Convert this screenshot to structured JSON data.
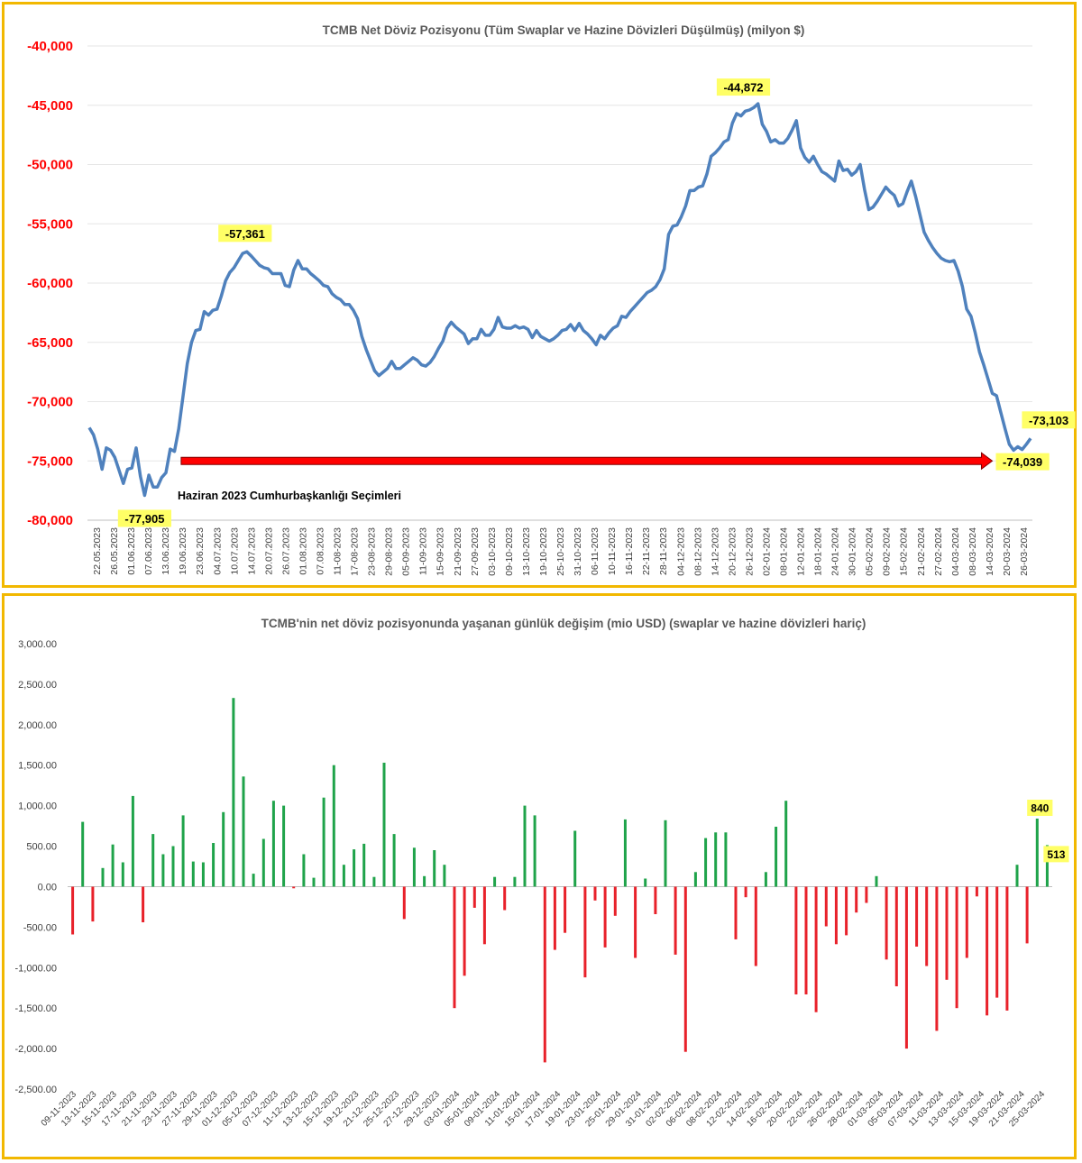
{
  "chart_data": [
    {
      "type": "line",
      "title": "TCMB Net Döviz Pozisyonu (Tüm Swaplar ve Hazine Dövizleri Düşülmüş) (milyon $)",
      "ylim": [
        -80000,
        -40000
      ],
      "yticks": [
        -40000,
        -45000,
        -50000,
        -55000,
        -60000,
        -65000,
        -70000,
        -75000,
        -80000
      ],
      "ytick_labels": [
        "-40,000",
        "-45,000",
        "-50,000",
        "-55,000",
        "-60,000",
        "-65,000",
        "-70,000",
        "-75,000",
        "-80,000"
      ],
      "xtick_labels": [
        "22.05.2023",
        "26.05.2023",
        "01.06.2023",
        "07.06.2023",
        "13.06.2023",
        "19.06.2023",
        "23.06.2023",
        "04.07.2023",
        "10.07.2023",
        "14.07.2023",
        "20.07.2023",
        "26.07.2023",
        "01.08.2023",
        "07.08.2023",
        "11-08-2023",
        "17-08-2023",
        "23-08-2023",
        "29-08-2023",
        "05-09-2023",
        "11-09-2023",
        "15-09-2023",
        "21-09-2023",
        "27-09-2023",
        "03-10-2023",
        "09-10-2023",
        "13-10-2023",
        "19-10-2023",
        "25-10-2023",
        "31-10-2023",
        "06-11-2023",
        "10-11-2023",
        "16-11-2023",
        "22-11-2023",
        "28-11-2023",
        "04-12-2023",
        "08-12-2023",
        "14-12-2023",
        "20-12-2023",
        "26-12-2023",
        "02-01-2024",
        "08-01-2024",
        "12-01-2024",
        "18-01-2024",
        "24-01-2024",
        "30-01-2024",
        "05-02-2024",
        "09-02-2024",
        "15-02-2024",
        "21-02-2024",
        "27-02-2024",
        "04-03-2024",
        "08-03-2024",
        "14-03-2024",
        "20-03-2024",
        "26-03-2024"
      ],
      "series": [
        {
          "color": "#4f81bd",
          "values": [
            -72200,
            -72800,
            -74000,
            -75700,
            -73900,
            -74100,
            -74700,
            -75800,
            -76900,
            -75700,
            -75600,
            -73900,
            -76300,
            -77905,
            -76200,
            -77200,
            -77200,
            -76400,
            -76000,
            -74000,
            -74200,
            -72300,
            -69600,
            -66800,
            -65000,
            -64000,
            -63900,
            -62400,
            -62700,
            -62300,
            -62200,
            -61100,
            -59800,
            -59100,
            -58700,
            -58100,
            -57500,
            -57361,
            -57700,
            -58100,
            -58500,
            -58700,
            -58800,
            -59200,
            -59200,
            -59200,
            -60200,
            -60300,
            -58900,
            -58100,
            -58800,
            -58800,
            -59200,
            -59500,
            -59800,
            -60200,
            -60300,
            -60900,
            -61200,
            -61400,
            -61800,
            -61800,
            -62300,
            -63000,
            -64500,
            -65600,
            -66500,
            -67400,
            -67800,
            -67500,
            -67200,
            -66600,
            -67200,
            -67200,
            -66900,
            -66600,
            -66300,
            -66500,
            -66900,
            -67000,
            -66700,
            -66200,
            -65500,
            -64900,
            -63800,
            -63300,
            -63700,
            -64000,
            -64300,
            -65100,
            -64700,
            -64700,
            -63900,
            -64400,
            -64400,
            -63900,
            -62900,
            -63700,
            -63800,
            -63800,
            -63600,
            -63800,
            -63700,
            -63900,
            -64600,
            -64000,
            -64500,
            -64700,
            -64900,
            -64700,
            -64400,
            -64000,
            -63900,
            -63500,
            -64000,
            -63400,
            -64000,
            -64300,
            -64700,
            -65200,
            -64400,
            -64700,
            -64200,
            -63800,
            -63600,
            -62800,
            -62900,
            -62400,
            -62000,
            -61600,
            -61200,
            -60800,
            -60600,
            -60300,
            -59700,
            -58800,
            -55900,
            -55200,
            -55100,
            -54400,
            -53500,
            -52200,
            -52200,
            -51900,
            -51800,
            -50800,
            -49300,
            -49000,
            -48600,
            -48100,
            -47900,
            -46500,
            -45700,
            -45900,
            -45500,
            -45400,
            -45200,
            -44872,
            -46600,
            -47200,
            -48100,
            -47900,
            -48200,
            -48200,
            -47800,
            -47100,
            -46300,
            -48600,
            -49400,
            -49800,
            -49300,
            -50000,
            -50600,
            -50800,
            -51100,
            -51400,
            -49700,
            -50500,
            -50400,
            -50900,
            -50600,
            -50000,
            -52100,
            -53800,
            -53600,
            -53100,
            -52500,
            -51900,
            -52300,
            -52600,
            -53500,
            -53300,
            -52300,
            -51400,
            -52700,
            -54200,
            -55700,
            -56400,
            -57000,
            -57500,
            -57900,
            -58100,
            -58200,
            -58100,
            -59000,
            -60300,
            -62200,
            -62800,
            -64200,
            -65800,
            -66900,
            -68100,
            -69300,
            -69500,
            -70900,
            -72300,
            -73600,
            -74100,
            -73800,
            -74039,
            -73600,
            -73103
          ]
        }
      ],
      "annotations": [
        {
          "text": "-77,905",
          "value": -77905
        },
        {
          "text": "-57,361",
          "value": -57361
        },
        {
          "text": "-44,872",
          "value": -44872
        },
        {
          "text": "-73,103",
          "value": -73103
        },
        {
          "text": "-74,039",
          "value": -74039
        },
        {
          "text": "Haziran 2023 Cumhurbaşkanlığı Seçimleri"
        }
      ],
      "arrow_value": -75000
    },
    {
      "type": "bar",
      "title": "TCMB'nin net döviz pozisyonunda yaşanan günlük değişim (mio USD) (swaplar ve hazine dövizleri hariç)",
      "ylim": [
        -2500,
        3000
      ],
      "yticks": [
        3000,
        2500,
        2000,
        1500,
        1000,
        500,
        0,
        -500,
        -1000,
        -1500,
        -2000,
        -2500
      ],
      "ytick_labels": [
        "3,000.00",
        "2,500.00",
        "2,000.00",
        "1,500.00",
        "1,000.00",
        "500.00",
        "0.00",
        "-500.00",
        "-1,000.00",
        "-1,500.00",
        "-2,000.00",
        "-2,500.00"
      ],
      "xtick_labels": [
        "09-11-2023",
        "13-11-2023",
        "15-11-2023",
        "17-11-2023",
        "21-11-2023",
        "23-11-2023",
        "27-11-2023",
        "29-11-2023",
        "01-12-2023",
        "05-12-2023",
        "07-12-2023",
        "11-12-2023",
        "13-12-2023",
        "15-12-2023",
        "19-12-2023",
        "21-12-2023",
        "25-12-2023",
        "27-12-2023",
        "29-12-2023",
        "03-01-2024",
        "05-01-2024",
        "09-01-2024",
        "11-01-2024",
        "15-01-2024",
        "17-01-2024",
        "19-01-2024",
        "23-01-2024",
        "25-01-2024",
        "29-01-2024",
        "31-01-2024",
        "02-02-2024",
        "06-02-2024",
        "08-02-2024",
        "12-02-2024",
        "14-02-2024",
        "16-02-2024",
        "20-02-2024",
        "22-02-2024",
        "26-02-2024",
        "28-02-2024",
        "01-03-2024",
        "05-03-2024",
        "07-03-2024",
        "11-03-2024",
        "13-03-2024",
        "15-03-2024",
        "19-03-2024",
        "21-03-2024",
        "25-03-2024"
      ],
      "positive_color": "#1fa34a",
      "negative_color": "#e8212a",
      "values": [
        -590,
        800,
        -430,
        230,
        520,
        300,
        1120,
        -440,
        650,
        400,
        500,
        880,
        310,
        300,
        540,
        920,
        2330,
        1360,
        160,
        590,
        1060,
        1000,
        -20,
        400,
        110,
        1100,
        1500,
        270,
        460,
        530,
        120,
        1530,
        650,
        -400,
        480,
        130,
        450,
        270,
        -1500,
        -1100,
        -260,
        -710,
        120,
        -290,
        120,
        1000,
        880,
        -2170,
        -780,
        -570,
        690,
        -1120,
        -170,
        -750,
        -360,
        830,
        -880,
        100,
        -340,
        820,
        -840,
        -2040,
        180,
        600,
        670,
        670,
        -650,
        -130,
        -980,
        180,
        740,
        1060,
        -1330,
        -1330,
        -1550,
        -490,
        -710,
        -600,
        -320,
        -200,
        130,
        -900,
        -1230,
        -2000,
        -740,
        -980,
        -1780,
        -1150,
        -1500,
        -880,
        -120,
        -1590,
        -1370,
        -1530,
        270,
        -700,
        840,
        513
      ],
      "data_labels": [
        {
          "text": "840",
          "value": 840
        },
        {
          "text": "513",
          "value": 513
        }
      ]
    }
  ]
}
